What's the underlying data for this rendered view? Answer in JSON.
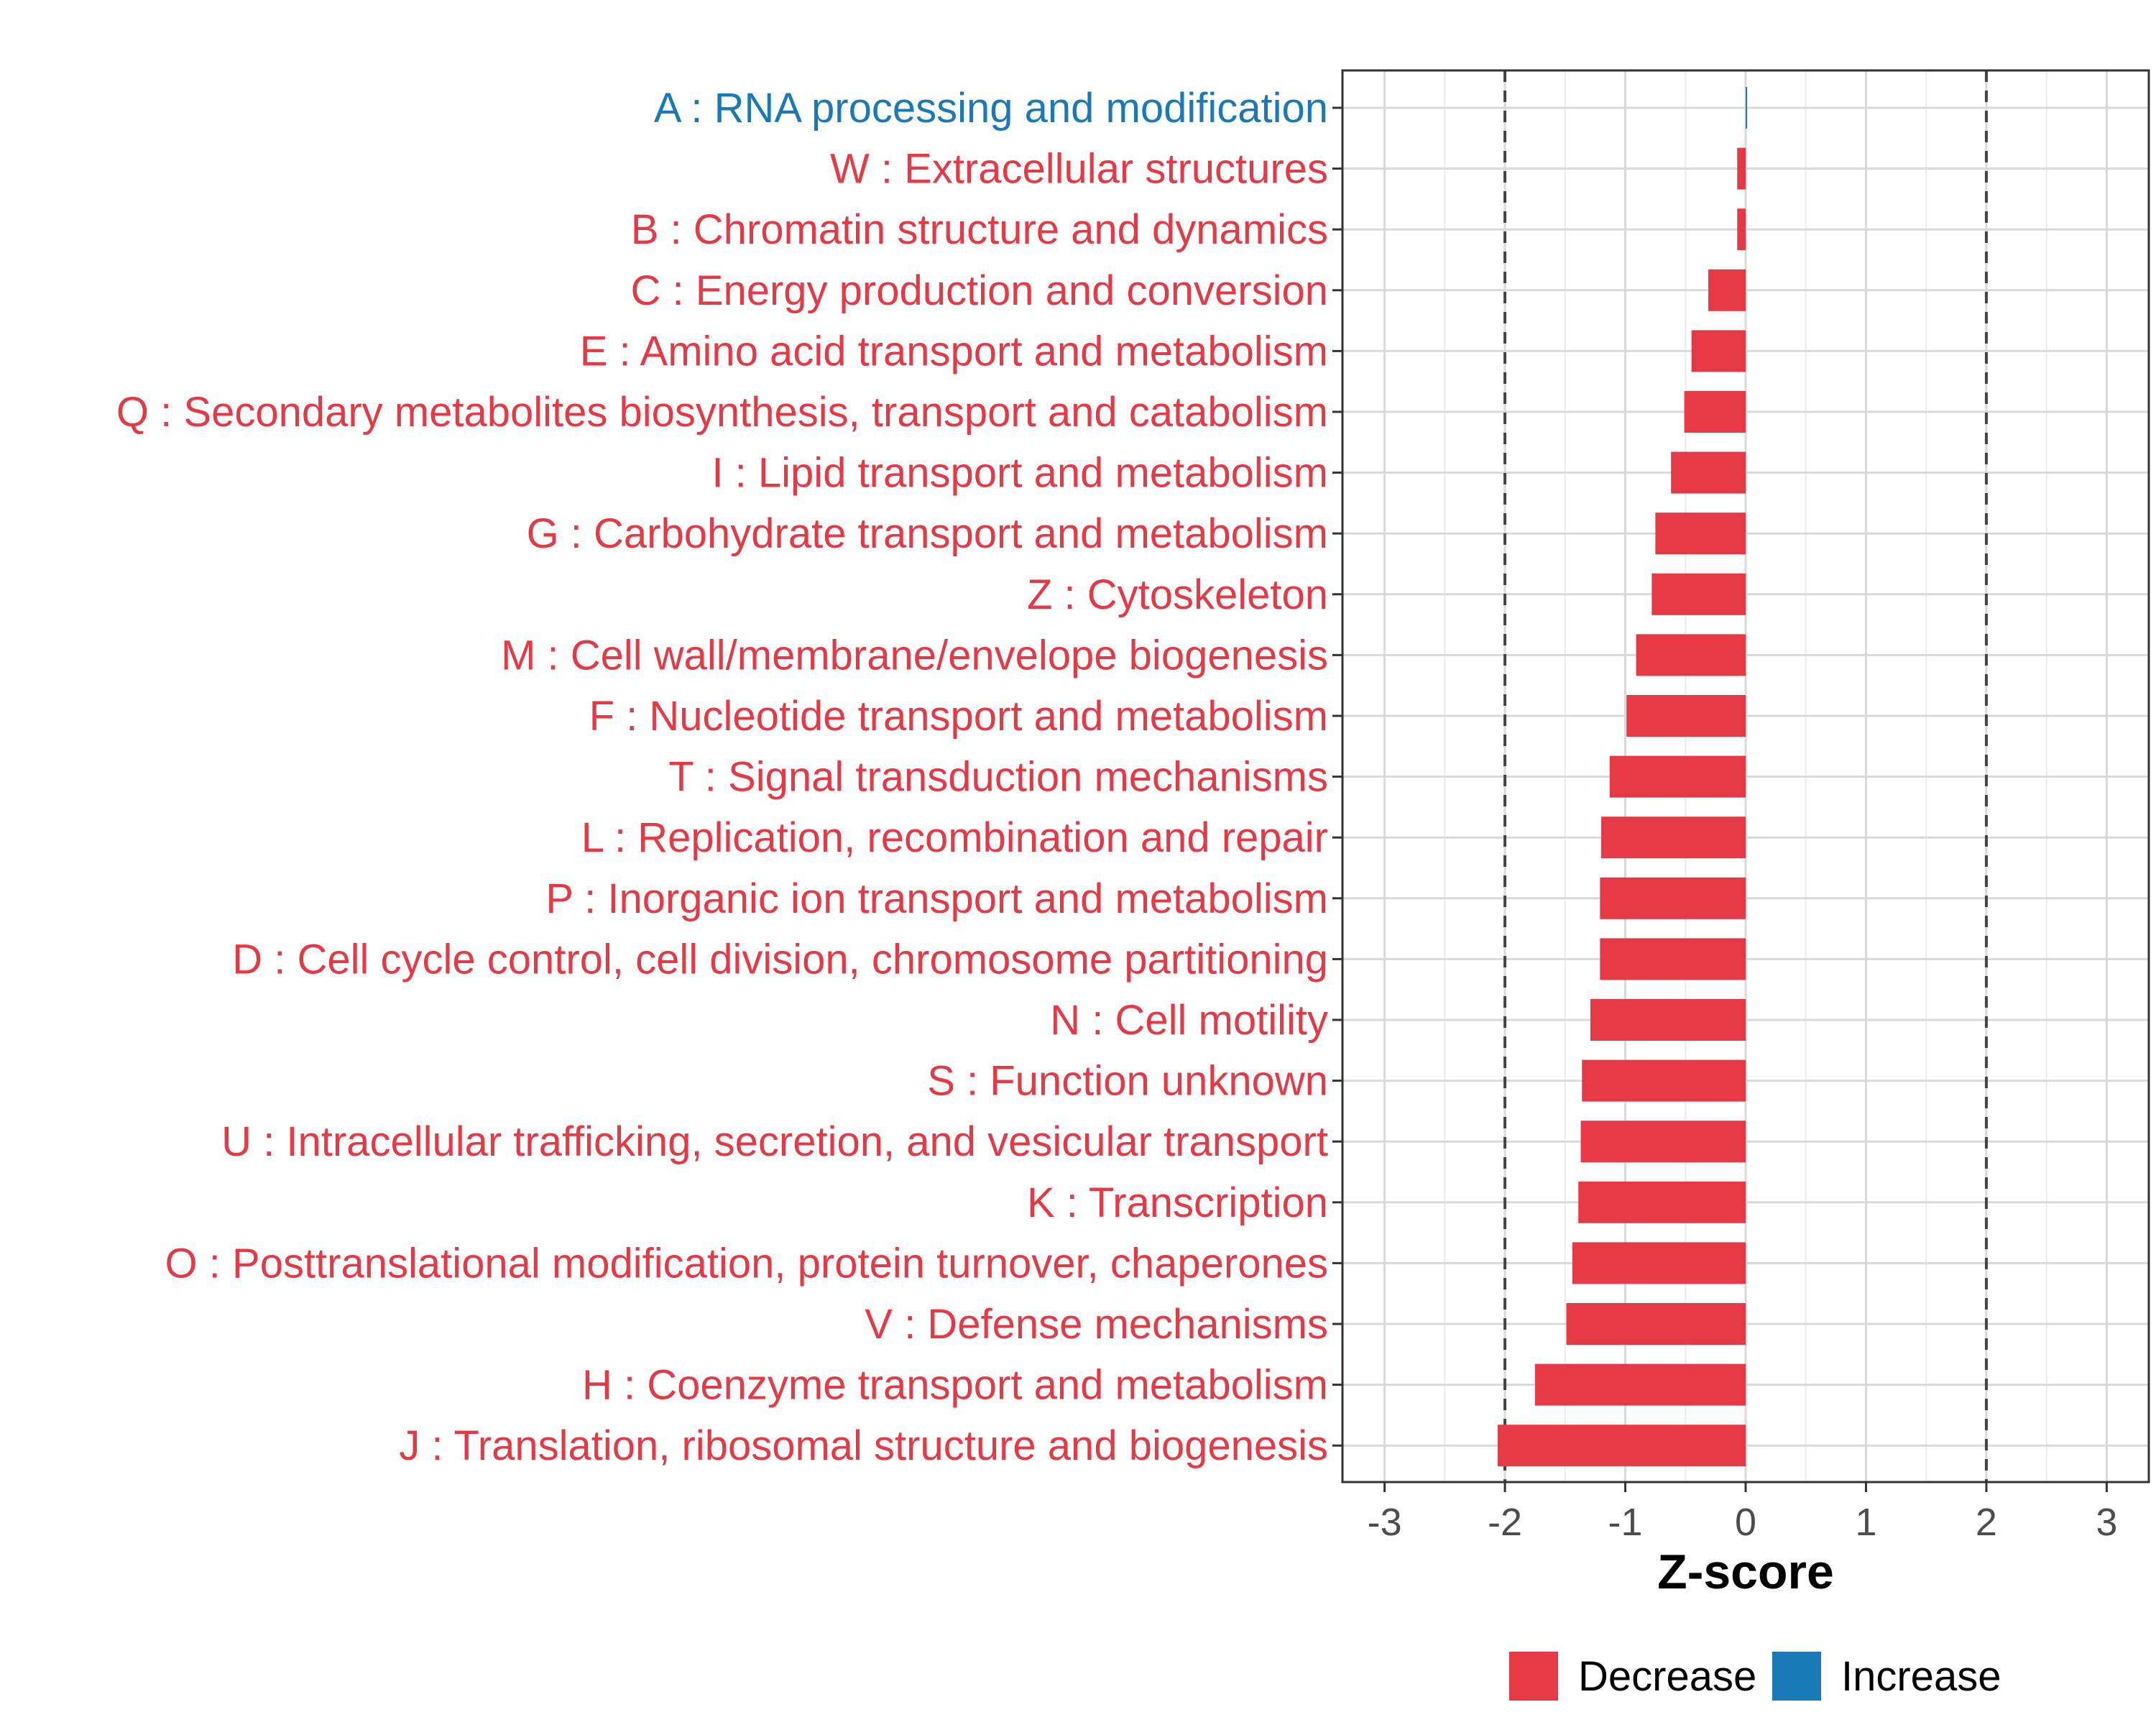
{
  "chart_data": {
    "type": "bar",
    "orientation": "horizontal",
    "categories": [
      "A : RNA processing and modification",
      "W : Extracellular structures",
      "B : Chromatin structure and dynamics",
      "C : Energy production and conversion",
      "E : Amino acid transport and metabolism",
      "Q : Secondary metabolites biosynthesis, transport and catabolism",
      "I : Lipid transport and metabolism",
      "G : Carbohydrate transport and metabolism",
      "Z : Cytoskeleton",
      "M : Cell wall/membrane/envelope biogenesis",
      "F : Nucleotide transport and metabolism",
      "T : Signal transduction mechanisms",
      "L : Replication, recombination and repair",
      "P : Inorganic ion transport and metabolism",
      "D : Cell cycle control, cell division, chromosome partitioning",
      "N : Cell motility",
      "S : Function unknown",
      "U : Intracellular trafficking, secretion, and vesicular transport",
      "K : Transcription",
      "O : Posttranslational modification, protein turnover, chaperones",
      "V : Defense mechanisms",
      "H : Coenzyme transport and metabolism",
      "J : Translation, ribosomal structure and biogenesis"
    ],
    "values": [
      0.01,
      -0.07,
      -0.07,
      -0.31,
      -0.45,
      -0.51,
      -0.62,
      -0.75,
      -0.78,
      -0.91,
      -0.99,
      -1.13,
      -1.2,
      -1.21,
      -1.21,
      -1.29,
      -1.36,
      -1.37,
      -1.39,
      -1.44,
      -1.49,
      -1.75,
      -2.06
    ],
    "groups": [
      "Increase",
      "Decrease",
      "Decrease",
      "Decrease",
      "Decrease",
      "Decrease",
      "Decrease",
      "Decrease",
      "Decrease",
      "Decrease",
      "Decrease",
      "Decrease",
      "Decrease",
      "Decrease",
      "Decrease",
      "Decrease",
      "Decrease",
      "Decrease",
      "Decrease",
      "Decrease",
      "Decrease",
      "Decrease",
      "Decrease"
    ],
    "colors": {
      "Decrease": "#e63946",
      "Increase": "#1a7ab8"
    },
    "xlabel": "Z-score",
    "ylabel": "",
    "xlim": [
      -3.35,
      3.35
    ],
    "xticks": [
      -3,
      -2,
      -1,
      0,
      1,
      2,
      3
    ],
    "xtick_labels": [
      "-3",
      "-2",
      "-1",
      "0",
      "1",
      "2",
      "3"
    ],
    "reference_lines": [
      -2,
      2
    ],
    "grid": true,
    "legend": {
      "position": "bottom",
      "entries": [
        "Decrease",
        "Increase"
      ]
    }
  }
}
